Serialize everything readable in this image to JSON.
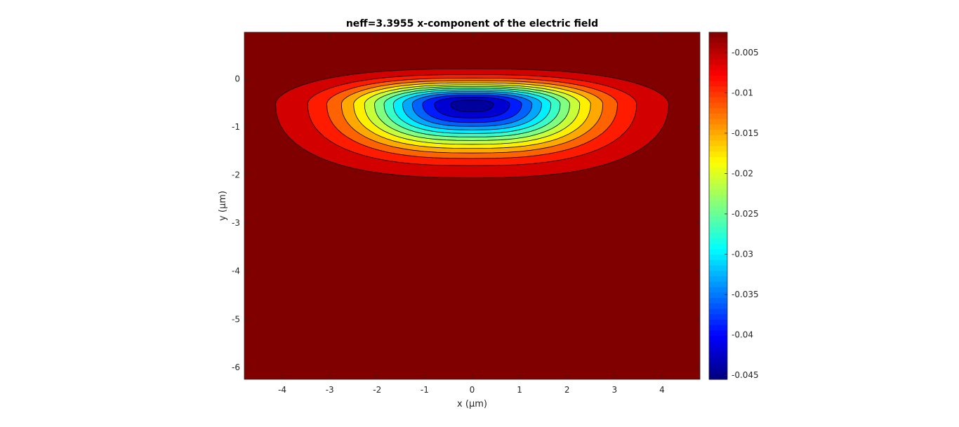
{
  "chart_data": {
    "type": "heatmap",
    "subtype": "filled-contour",
    "title": "neff=3.3955 x-component of the electric field",
    "xlabel": "x (µm)",
    "ylabel": "y (µm)",
    "xlim": [
      -4.8,
      4.8
    ],
    "ylim": [
      -6.25,
      0.97
    ],
    "x_ticks": [
      -4,
      -3,
      -2,
      -1,
      0,
      1,
      2,
      3,
      4
    ],
    "x_tick_labels": [
      "-4",
      "-3",
      "-2",
      "-1",
      "0",
      "1",
      "2",
      "3",
      "4"
    ],
    "y_ticks": [
      0,
      -1,
      -2,
      -3,
      -4,
      -5,
      -6
    ],
    "y_tick_labels": [
      "0",
      "-1",
      "-2",
      "-3",
      "-4",
      "-5",
      "-6"
    ],
    "colorbar": {
      "colormap": "jet",
      "clim": [
        -0.0455,
        -0.0025
      ],
      "ticks": [
        -0.005,
        -0.01,
        -0.015,
        -0.02,
        -0.025,
        -0.03,
        -0.035,
        -0.04,
        -0.045
      ],
      "tick_labels": [
        "-0.005",
        "-0.01",
        "-0.015",
        "-0.02",
        "-0.025",
        "-0.03",
        "-0.035",
        "-0.04",
        "-0.045"
      ]
    },
    "field": {
      "center": [
        0,
        -0.52
      ],
      "minimum_value": -0.045,
      "background_value": -0.0025,
      "contour_levels": [
        -0.0045,
        -0.0075,
        -0.0105,
        -0.0135,
        -0.0165,
        -0.0195,
        -0.0225,
        -0.0255,
        -0.0285,
        -0.0315,
        -0.0345,
        -0.0375,
        -0.0405,
        -0.0435
      ]
    }
  }
}
